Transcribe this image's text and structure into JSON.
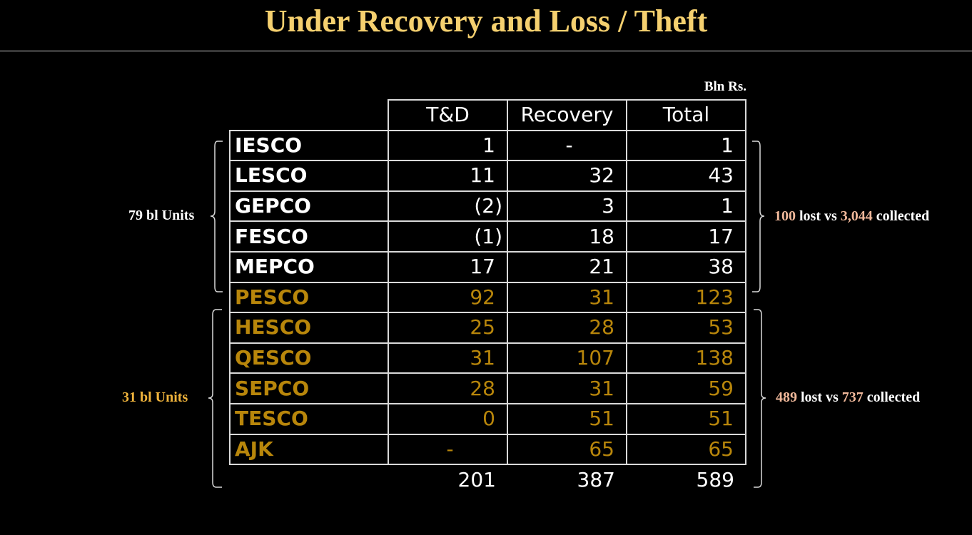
{
  "title": "Under Recovery and Loss / Theft",
  "units": "Bln Rs.",
  "chart_data": {
    "type": "table",
    "columns": [
      "",
      "T&D",
      "Recovery",
      "Total"
    ],
    "rows": [
      {
        "name": "IESCO",
        "td": "1",
        "recovery": "-",
        "total": "1",
        "group": "top"
      },
      {
        "name": "LESCO",
        "td": "11",
        "recovery": "32",
        "total": "43",
        "group": "top"
      },
      {
        "name": "GEPCO",
        "td": "(2)",
        "recovery": "3",
        "total": "1",
        "group": "top"
      },
      {
        "name": "FESCO",
        "td": "(1)",
        "recovery": "18",
        "total": "17",
        "group": "top"
      },
      {
        "name": "MEPCO",
        "td": "17",
        "recovery": "21",
        "total": "38",
        "group": "top"
      },
      {
        "name": "PESCO",
        "td": "92",
        "recovery": "31",
        "total": "123",
        "group": "bottom"
      },
      {
        "name": "HESCO",
        "td": "25",
        "recovery": "28",
        "total": "53",
        "group": "bottom"
      },
      {
        "name": "QESCO",
        "td": "31",
        "recovery": "107",
        "total": "138",
        "group": "bottom"
      },
      {
        "name": "SEPCO",
        "td": "28",
        "recovery": "31",
        "total": "59",
        "group": "bottom"
      },
      {
        "name": "TESCO",
        "td": "0",
        "recovery": "51",
        "total": "51",
        "group": "bottom"
      },
      {
        "name": "AJK",
        "td": "-",
        "recovery": "65",
        "total": "65",
        "group": "bottom"
      }
    ],
    "totals": {
      "td": "201",
      "recovery": "387",
      "total": "589"
    },
    "annotations": {
      "top_left": "79 bl Units",
      "bottom_left": "31 bl Units",
      "top_right": {
        "lost": "100",
        "lost_text": " lost vs ",
        "collected": "3,044",
        "collected_text": " collected"
      },
      "bottom_right": {
        "lost": "489",
        "lost_text": " lost vs ",
        "collected": "737",
        "collected_text": " collected"
      }
    },
    "colors": {
      "background": "#000000",
      "title": "#f5d06f",
      "top_group": "#ffffff",
      "bottom_group": "#b8860b",
      "highlight": "#f0b89a",
      "bottom_label": "#f0b43c"
    }
  }
}
